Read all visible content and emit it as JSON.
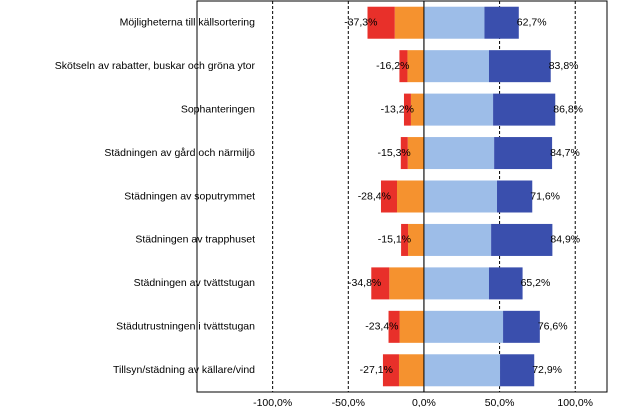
{
  "chart_data": {
    "type": "diverging-bar",
    "categories": [
      "Möjligheterna till källsortering",
      "Skötseln av rabatter, buskar och gröna ytor",
      "Sophanteringen",
      "Städningen av gård och närmiljö",
      "Städningen av soputrymmet",
      "Städningen av trapphuset",
      "Städningen av tvättstugan",
      "Städutrustningen i tvättstugan",
      "Tillsyn/städning av källare/vind"
    ],
    "series": [
      {
        "color": "#f5922f",
        "values": [
          -19.3,
          -10.9,
          -8.6,
          -10.7,
          -17.8,
          -10.5,
          -22.9,
          -16.1,
          -16.5
        ]
      },
      {
        "color": "#e8302a",
        "values": [
          -18.0,
          -5.3,
          -4.6,
          -4.6,
          -10.6,
          -4.6,
          -11.9,
          -7.3,
          -10.6
        ]
      },
      {
        "color": "#9dbde8",
        "values": [
          40.0,
          43.0,
          45.7,
          46.4,
          48.3,
          44.4,
          43.0,
          52.3,
          50.3
        ]
      },
      {
        "color": "#3a4fad",
        "values": [
          22.7,
          40.8,
          41.1,
          38.3,
          23.3,
          40.5,
          22.2,
          24.3,
          22.6
        ]
      }
    ],
    "negative_totals": {
      "values": [
        -37.3,
        -16.2,
        -13.2,
        -15.3,
        -28.4,
        -15.1,
        -34.8,
        -23.4,
        -27.1
      ],
      "value_labels": [
        "-37,3%",
        "-16,2%",
        "-13,2%",
        "-15,3%",
        "-28,4%",
        "-15,1%",
        "-34,8%",
        "-23,4%",
        "-27,1%"
      ]
    },
    "positive_totals": {
      "values": [
        62.7,
        83.8,
        86.8,
        84.7,
        71.6,
        84.9,
        65.2,
        76.6,
        72.9
      ],
      "value_labels": [
        "62,7%",
        "83,8%",
        "86,8%",
        "84,7%",
        "71,6%",
        "84,9%",
        "65,2%",
        "76,6%",
        "72,9%"
      ]
    },
    "xlim": [
      -150,
      121
    ],
    "xticks": [
      {
        "value": -100,
        "label": "-100,0%"
      },
      {
        "value": -50,
        "label": "-50,0%"
      },
      {
        "value": 0,
        "label": "0,0%"
      },
      {
        "value": 50,
        "label": "50,0%"
      },
      {
        "value": 100,
        "label": "100,0%"
      }
    ],
    "grid": true
  }
}
